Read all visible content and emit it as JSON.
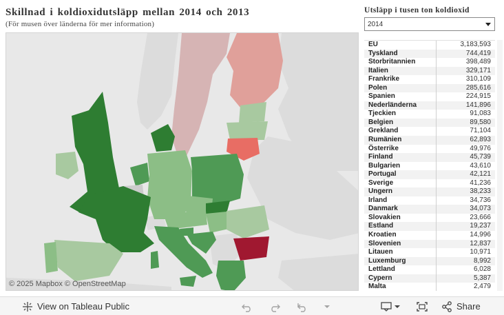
{
  "header": {
    "title": "Skillnad i koldioxidutsläpp mellan 2014 och 2013",
    "subtitle": "(För musen över länderna för mer information)"
  },
  "filter": {
    "title": "Utsläpp i tusen ton koldioxid",
    "selected": "2014"
  },
  "map": {
    "attribution": "© 2025 Mapbox © OpenStreetMap",
    "colors": {
      "sea": "#e8e8e8",
      "land_other": "#dcdcdc",
      "dark_green": "#2e7d32",
      "mid_green": "#4f9a55",
      "light_green": "#8cbe86",
      "pale_green": "#a8c9a0",
      "pale_pink": "#d6b4b4",
      "pink": "#e0a09a",
      "red": "#e86d64",
      "crimson": "#a01830",
      "grey_nonEU": "#cccccc"
    }
  },
  "table": {
    "rows": [
      {
        "name": "EU",
        "value": "3,183,593"
      },
      {
        "name": "Tyskland",
        "value": "744,419"
      },
      {
        "name": "Storbritannien",
        "value": "398,489"
      },
      {
        "name": "Italien",
        "value": "329,171"
      },
      {
        "name": "Frankrike",
        "value": "310,109"
      },
      {
        "name": "Polen",
        "value": "285,616"
      },
      {
        "name": "Spanien",
        "value": "224,915"
      },
      {
        "name": "Nederländerna",
        "value": "141,896"
      },
      {
        "name": "Tjeckien",
        "value": "91,083"
      },
      {
        "name": "Belgien",
        "value": "89,580"
      },
      {
        "name": "Grekland",
        "value": "71,104"
      },
      {
        "name": "Rumänien",
        "value": "62,893"
      },
      {
        "name": "Österrike",
        "value": "49,976"
      },
      {
        "name": "Finland",
        "value": "45,739"
      },
      {
        "name": "Bulgarien",
        "value": "43,610"
      },
      {
        "name": "Portugal",
        "value": "42,121"
      },
      {
        "name": "Sverige",
        "value": "41,236"
      },
      {
        "name": "Ungern",
        "value": "38,233"
      },
      {
        "name": "Irland",
        "value": "34,736"
      },
      {
        "name": "Danmark",
        "value": "34,073"
      },
      {
        "name": "Slovakien",
        "value": "23,666"
      },
      {
        "name": "Estland",
        "value": "19,237"
      },
      {
        "name": "Kroatien",
        "value": "14,996"
      },
      {
        "name": "Slovenien",
        "value": "12,837"
      },
      {
        "name": "Litauen",
        "value": "10,971"
      },
      {
        "name": "Luxemburg",
        "value": "8,992"
      },
      {
        "name": "Lettland",
        "value": "6,028"
      },
      {
        "name": "Cypern",
        "value": "5,387"
      },
      {
        "name": "Malta",
        "value": "2,479"
      }
    ]
  },
  "footer": {
    "view_label": "View on Tableau Public",
    "share_label": "Share",
    "icons": [
      "tableau-logo-icon",
      "undo-icon",
      "redo-icon",
      "revert-icon",
      "dropdown-icon",
      "download-icon",
      "fullscreen-icon",
      "share-icon"
    ]
  }
}
